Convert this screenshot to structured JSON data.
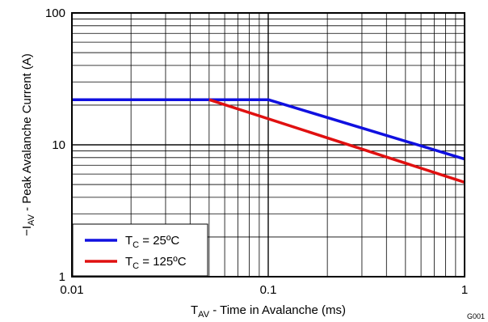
{
  "chart_data": {
    "type": "line",
    "xscale": "log",
    "yscale": "log",
    "xlim": [
      0.01,
      1
    ],
    "ylim": [
      1,
      100
    ],
    "grid": true,
    "legend_position": "bottom-left",
    "xlabel": {
      "main": "T",
      "sub": "AV",
      "rest": " - Time in Avalanche (ms)"
    },
    "ylabel": {
      "prefix": "−I",
      "sub": "AV",
      "rest": " - Peak Avalanche Current  (A)"
    },
    "x_ticks": [
      {
        "value": 0.01,
        "label": "0.01"
      },
      {
        "value": 0.1,
        "label": "0.1"
      },
      {
        "value": 1,
        "label": "1"
      }
    ],
    "y_ticks": [
      {
        "value": 1,
        "label": "1"
      },
      {
        "value": 10,
        "label": "10"
      },
      {
        "value": 100,
        "label": "100"
      }
    ],
    "series": [
      {
        "name": {
          "main": "T",
          "sub": "C",
          "rest": " = 25ºC"
        },
        "color": "#1010e0",
        "points": [
          [
            0.01,
            22
          ],
          [
            0.1,
            22
          ],
          [
            1,
            7.8
          ]
        ]
      },
      {
        "name": {
          "main": "T",
          "sub": "C",
          "rest": " = 125ºC"
        },
        "color": "#e01010",
        "points": [
          [
            0.05,
            22
          ],
          [
            1,
            5.2
          ]
        ]
      }
    ],
    "figure_id": "G001"
  }
}
